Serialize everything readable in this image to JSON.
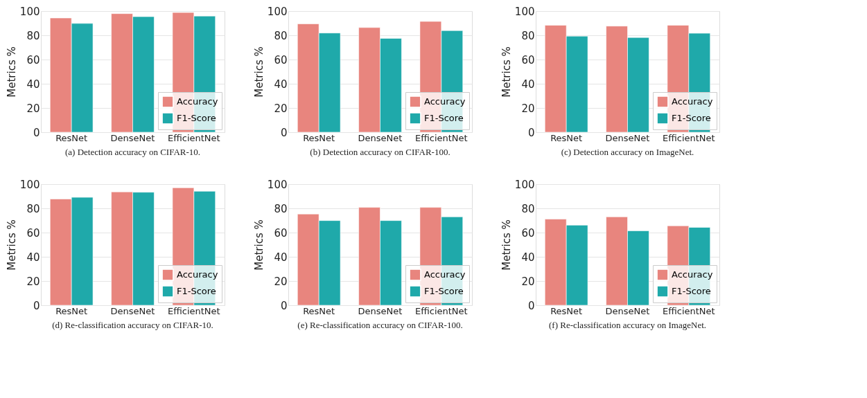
{
  "chart_data": [
    {
      "type": "bar",
      "title": "(a)  Detection accuracy on CIFAR-10.",
      "ylabel": "Metrics %",
      "categories": [
        "ResNet",
        "DenseNet",
        "EfficientNet"
      ],
      "ylim": [
        0,
        100
      ],
      "yticks": [
        0,
        20,
        40,
        60,
        80,
        100
      ],
      "grid": "y",
      "legend": "bottom right",
      "series": [
        {
          "name": "Accuracy",
          "color": "#e8857e",
          "values": [
            94.3,
            97.9,
            98.8
          ]
        },
        {
          "name": "F1-Score",
          "color": "#1fa9aa",
          "values": [
            89.8,
            95.4,
            95.9
          ]
        }
      ]
    },
    {
      "type": "bar",
      "title": "(b)  Detection accuracy on CIFAR-100.",
      "ylabel": "Metrics %",
      "categories": [
        "ResNet",
        "DenseNet",
        "EfficientNet"
      ],
      "ylim": [
        0,
        100
      ],
      "yticks": [
        0,
        20,
        40,
        60,
        80,
        100
      ],
      "grid": "y",
      "legend": "bottom right",
      "series": [
        {
          "name": "Accuracy",
          "color": "#e8857e",
          "values": [
            89.5,
            86.4,
            91.5
          ]
        },
        {
          "name": "F1-Score",
          "color": "#1fa9aa",
          "values": [
            81.9,
            77.5,
            83.9
          ]
        }
      ]
    },
    {
      "type": "bar",
      "title": "(c)  Detection accuracy on ImageNet.",
      "ylabel": "Metrics %",
      "categories": [
        "ResNet",
        "DenseNet",
        "EfficientNet"
      ],
      "ylim": [
        0,
        100
      ],
      "yticks": [
        0,
        20,
        40,
        60,
        80,
        100
      ],
      "grid": "y",
      "legend": "bottom right",
      "series": [
        {
          "name": "Accuracy",
          "color": "#e8857e",
          "values": [
            88.3,
            87.6,
            88.3
          ]
        },
        {
          "name": "F1-Score",
          "color": "#1fa9aa",
          "values": [
            79.3,
            78.2,
            81.7
          ]
        }
      ]
    },
    {
      "type": "bar",
      "title": "(d)  Re-classification accuracy on CIFAR-10.",
      "ylabel": "Metrics %",
      "categories": [
        "ResNet",
        "DenseNet",
        "EfficientNet"
      ],
      "ylim": [
        0,
        100
      ],
      "yticks": [
        0,
        20,
        40,
        60,
        80,
        100
      ],
      "grid": "y",
      "legend": "bottom right",
      "series": [
        {
          "name": "Accuracy",
          "color": "#e8857e",
          "values": [
            87.7,
            93.6,
            97.0
          ]
        },
        {
          "name": "F1-Score",
          "color": "#1fa9aa",
          "values": [
            89.1,
            93.3,
            94.1
          ]
        }
      ]
    },
    {
      "type": "bar",
      "title": "(e)  Re-classification accuracy on CIFAR-100.",
      "ylabel": "Metrics %",
      "categories": [
        "ResNet",
        "DenseNet",
        "EfficientNet"
      ],
      "ylim": [
        0,
        100
      ],
      "yticks": [
        0,
        20,
        40,
        60,
        80,
        100
      ],
      "grid": "y",
      "legend": "bottom right",
      "series": [
        {
          "name": "Accuracy",
          "color": "#e8857e",
          "values": [
            75.3,
            80.8,
            80.8
          ]
        },
        {
          "name": "F1-Score",
          "color": "#1fa9aa",
          "values": [
            69.9,
            69.9,
            73.0
          ]
        }
      ]
    },
    {
      "type": "bar",
      "title": "(f)  Re-classification accuracy on ImageNet.",
      "ylabel": "Metrics %",
      "categories": [
        "ResNet",
        "DenseNet",
        "EfficientNet"
      ],
      "ylim": [
        0,
        100
      ],
      "yticks": [
        0,
        20,
        40,
        60,
        80,
        100
      ],
      "grid": "y",
      "legend": "bottom right",
      "series": [
        {
          "name": "Accuracy",
          "color": "#e8857e",
          "values": [
            71.1,
            73.0,
            65.6
          ]
        },
        {
          "name": "F1-Score",
          "color": "#1fa9aa",
          "values": [
            66.1,
            61.5,
            64.3
          ]
        }
      ]
    }
  ]
}
